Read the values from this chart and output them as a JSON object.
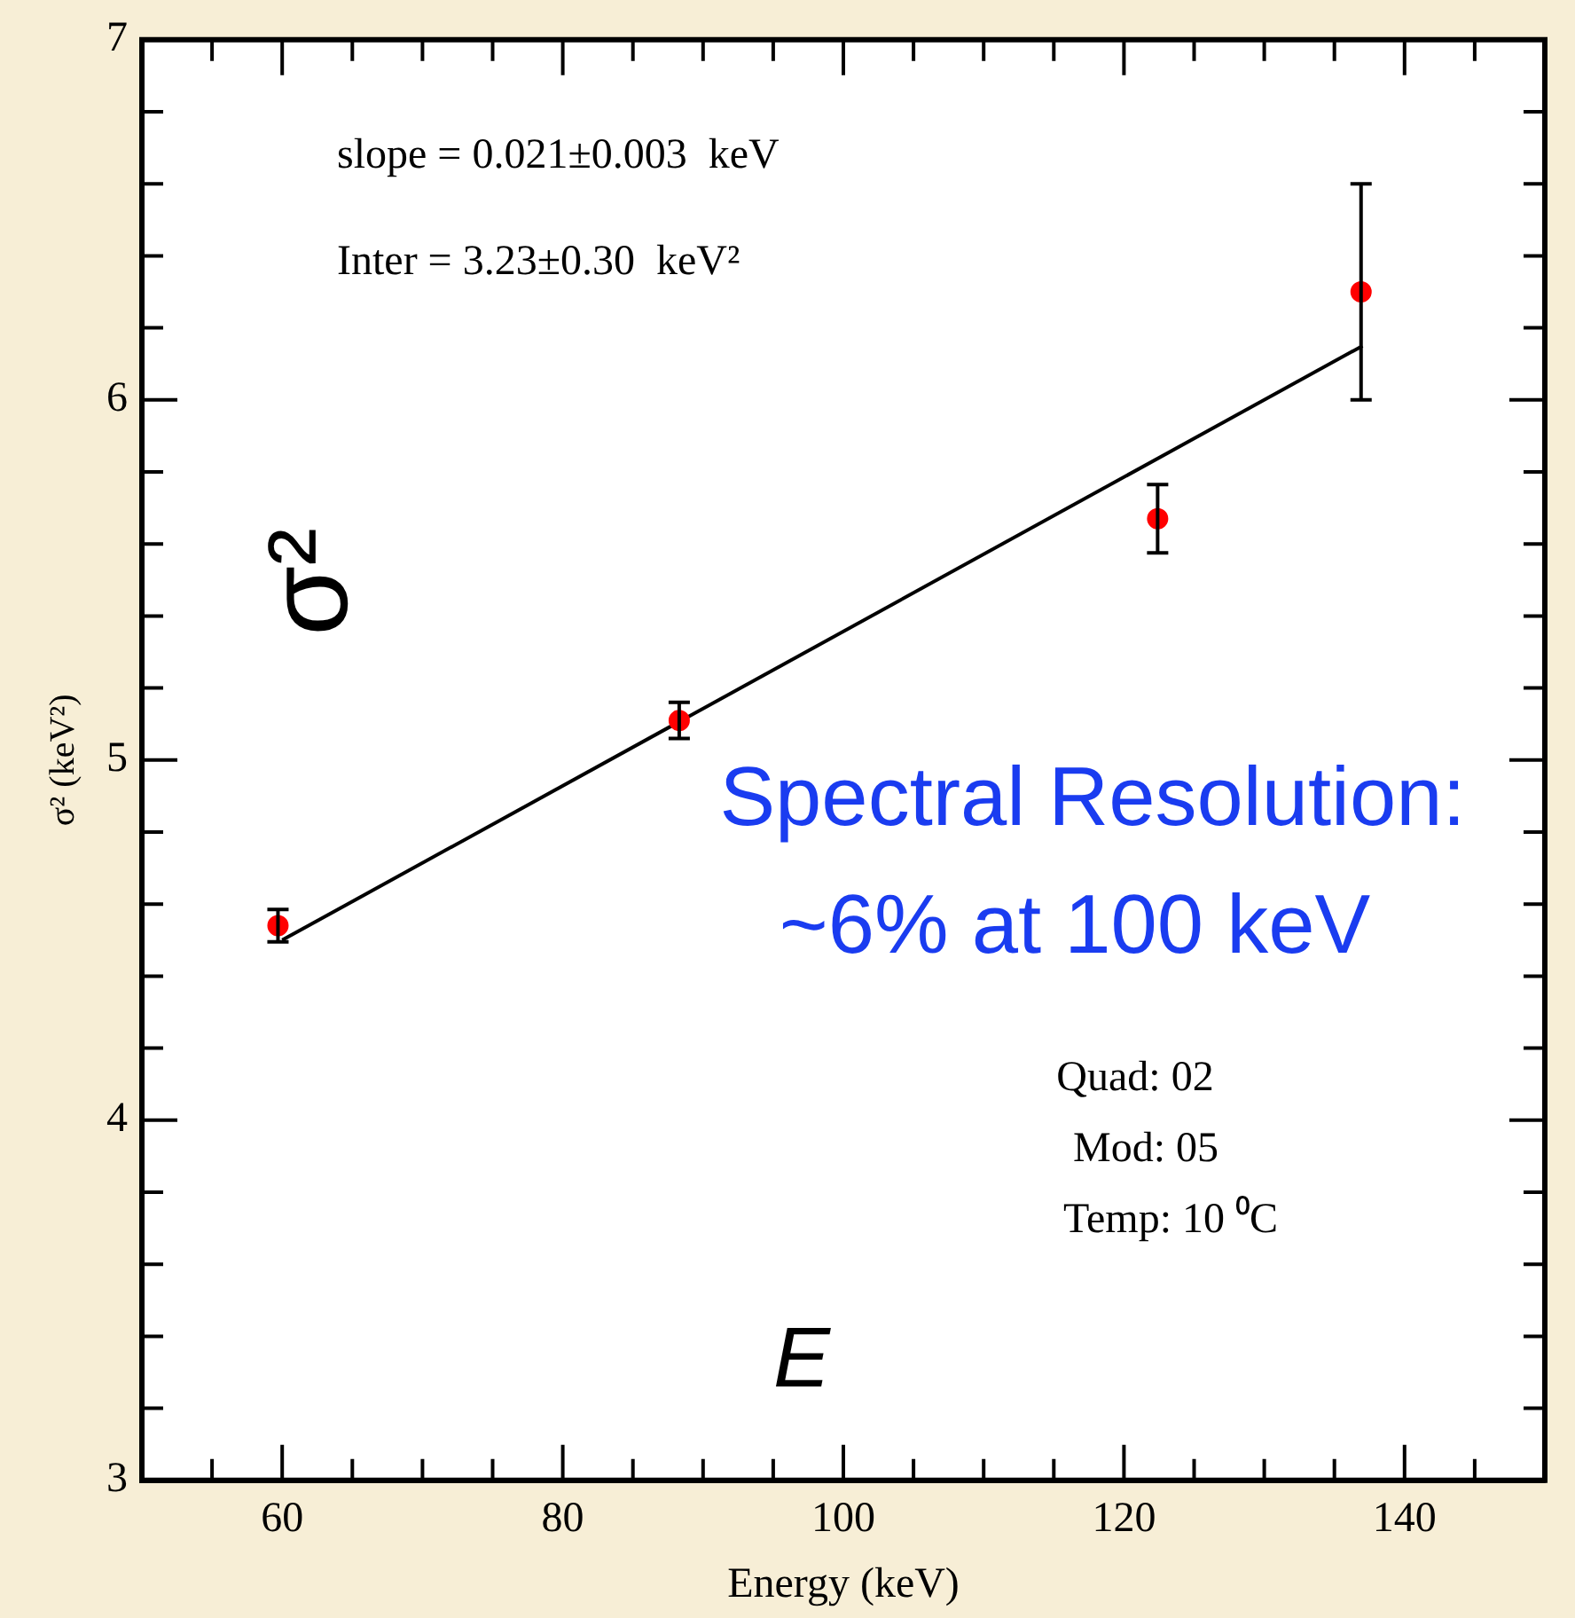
{
  "chart_data": {
    "type": "scatter",
    "xlabel": "Energy (keV)",
    "ylabel": "σ² (keV²)",
    "xlim": [
      50,
      150
    ],
    "ylim": [
      3,
      7
    ],
    "xticks": [
      {
        "value": 55,
        "label": null
      },
      60,
      {
        "value": 65,
        "label": null
      },
      {
        "value": 70,
        "label": null
      },
      {
        "value": 75,
        "label": null
      },
      80,
      {
        "value": 85,
        "label": null
      },
      {
        "value": 90,
        "label": null
      },
      {
        "value": 95,
        "label": null
      },
      100,
      {
        "value": 105,
        "label": null
      },
      {
        "value": 110,
        "label": null
      },
      {
        "value": 115,
        "label": null
      },
      120,
      {
        "value": 125,
        "label": null
      },
      {
        "value": 130,
        "label": null
      },
      {
        "value": 135,
        "label": null
      },
      140,
      {
        "value": 145,
        "label": null
      }
    ],
    "yticks": [
      3,
      {
        "value": 3.2,
        "label": null
      },
      {
        "value": 3.4,
        "label": null
      },
      {
        "value": 3.6,
        "label": null
      },
      {
        "value": 3.8,
        "label": null
      },
      4,
      {
        "value": 4.2,
        "label": null
      },
      {
        "value": 4.4,
        "label": null
      },
      {
        "value": 4.6,
        "label": null
      },
      {
        "value": 4.8,
        "label": null
      },
      5,
      {
        "value": 5.2,
        "label": null
      },
      {
        "value": 5.4,
        "label": null
      },
      {
        "value": 5.6,
        "label": null
      },
      {
        "value": 5.8,
        "label": null
      },
      6,
      {
        "value": 6.2,
        "label": null
      },
      {
        "value": 6.4,
        "label": null
      },
      {
        "value": 6.6,
        "label": null
      },
      {
        "value": 6.8,
        "label": null
      },
      7
    ],
    "grid": false,
    "legend": false,
    "series": [
      {
        "type": "scatter",
        "color": "#ff0000",
        "marker": "circle",
        "x": [
          59.7,
          88.3,
          122.4,
          136.9
        ],
        "values": [
          4.54,
          5.11,
          5.67,
          6.3
        ],
        "errors": [
          0.045,
          0.05,
          0.095,
          0.3
        ]
      },
      {
        "type": "line",
        "color": "#000000",
        "marker": "none",
        "line_style": "solid",
        "x": [
          60,
          137
        ],
        "values": [
          4.5,
          6.15
        ]
      }
    ],
    "annotations": [
      "slope = 0.021±0.003  keV",
      "Inter = 3.23±0.30  keV²",
      "σ²",
      "Spectral Resolution:",
      "~6% at 100 keV",
      "Quad: 02",
      "Mod: 05",
      "Temp: 10 ⁰C",
      "E"
    ]
  }
}
